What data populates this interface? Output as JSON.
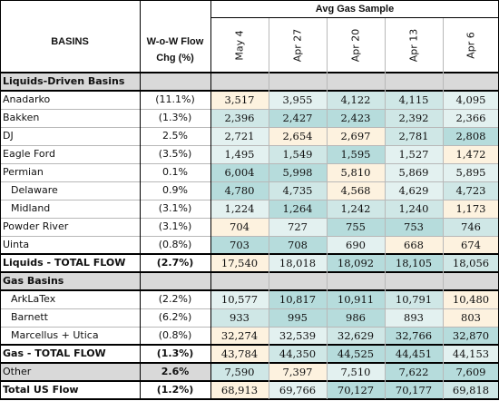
{
  "header": {
    "group_title": "Avg Gas Sample",
    "basins_label": "BASINS",
    "wow_label": "W-o-W Flow Chg (%)",
    "wow_label_line1": "W-o-W Flow",
    "wow_label_line2": "Chg (%)",
    "dates": [
      "May 4",
      "Apr 27",
      "Apr 20",
      "Apr 13",
      "Apr 6"
    ]
  },
  "colors": {
    "section_gray": "#d9d9d9",
    "cell_cream": "#fdf2df",
    "cell_light": "#e3f1f0",
    "cell_teal": "#b6dcdc",
    "cell_mid": "#cfe7e6"
  },
  "rows": [
    {
      "type": "section",
      "label": "Liquids-Driven Basins"
    },
    {
      "type": "data",
      "label": "Anadarko",
      "wow": "(11.1%)",
      "values": [
        "3,517",
        "3,955",
        "4,122",
        "4,115",
        "4,095"
      ],
      "shades": [
        "cream",
        "light",
        "mid",
        "mid",
        "light"
      ]
    },
    {
      "type": "data",
      "label": "Bakken",
      "wow": "(1.3%)",
      "values": [
        "2,396",
        "2,427",
        "2,423",
        "2,392",
        "2,366"
      ],
      "shades": [
        "mid",
        "teal",
        "teal",
        "mid",
        "light"
      ]
    },
    {
      "type": "data",
      "label": "DJ",
      "wow": "2.5%",
      "values": [
        "2,721",
        "2,654",
        "2,697",
        "2,781",
        "2,808"
      ],
      "shades": [
        "light",
        "cream",
        "cream",
        "mid",
        "teal"
      ]
    },
    {
      "type": "data",
      "label": "Eagle Ford",
      "wow": "(3.5%)",
      "values": [
        "1,495",
        "1,549",
        "1,595",
        "1,527",
        "1,472"
      ],
      "shades": [
        "light",
        "mid",
        "teal",
        "light",
        "cream"
      ]
    },
    {
      "type": "data",
      "label": "Permian",
      "wow": "0.1%",
      "values": [
        "6,004",
        "5,998",
        "5,810",
        "5,869",
        "5,895"
      ],
      "shades": [
        "teal",
        "teal",
        "cream",
        "light",
        "light"
      ]
    },
    {
      "type": "data",
      "label": "Delaware",
      "indent": true,
      "wow": "0.9%",
      "values": [
        "4,780",
        "4,735",
        "4,568",
        "4,629",
        "4,723"
      ],
      "shades": [
        "teal",
        "mid",
        "cream",
        "light",
        "mid"
      ]
    },
    {
      "type": "data",
      "label": "Midland",
      "indent": true,
      "wow": "(3.1%)",
      "values": [
        "1,224",
        "1,264",
        "1,242",
        "1,240",
        "1,173"
      ],
      "shades": [
        "light",
        "teal",
        "mid",
        "mid",
        "cream"
      ]
    },
    {
      "type": "data",
      "label": "Powder River",
      "wow": "(3.1%)",
      "values": [
        "704",
        "727",
        "755",
        "753",
        "746"
      ],
      "shades": [
        "cream",
        "light",
        "teal",
        "teal",
        "mid"
      ]
    },
    {
      "type": "data",
      "label": "Uinta",
      "wow": "(0.8%)",
      "values": [
        "703",
        "708",
        "690",
        "668",
        "674"
      ],
      "shades": [
        "teal",
        "teal",
        "light",
        "cream",
        "cream"
      ]
    },
    {
      "type": "total",
      "label": "Liquids - TOTAL FLOW",
      "wow": "(2.7%)",
      "values": [
        "17,540",
        "18,018",
        "18,092",
        "18,105",
        "18,056"
      ],
      "shades": [
        "cream",
        "light",
        "teal",
        "teal",
        "mid"
      ]
    },
    {
      "type": "section",
      "label": "Gas Basins"
    },
    {
      "type": "data",
      "label": "ArkLaTex",
      "indent": true,
      "wow": "(2.2%)",
      "values": [
        "10,577",
        "10,817",
        "10,911",
        "10,791",
        "10,480"
      ],
      "shades": [
        "light",
        "teal",
        "teal",
        "mid",
        "cream"
      ]
    },
    {
      "type": "data",
      "label": "Barnett",
      "indent": true,
      "wow": "(6.2%)",
      "values": [
        "933",
        "995",
        "986",
        "893",
        "803"
      ],
      "shades": [
        "mid",
        "teal",
        "teal",
        "light",
        "cream"
      ]
    },
    {
      "type": "data",
      "label": "Marcellus + Utica",
      "indent": true,
      "wow": "(0.8%)",
      "values": [
        "32,274",
        "32,539",
        "32,629",
        "32,766",
        "32,870"
      ],
      "shades": [
        "cream",
        "light",
        "mid",
        "teal",
        "teal"
      ]
    },
    {
      "type": "total",
      "label": "Gas - TOTAL FLOW",
      "wow": "(1.3%)",
      "values": [
        "43,784",
        "44,350",
        "44,525",
        "44,451",
        "44,153"
      ],
      "shades": [
        "cream",
        "mid",
        "teal",
        "teal",
        "light"
      ]
    },
    {
      "type": "total-other",
      "label": "Other",
      "wow": "2.6%",
      "values": [
        "7,590",
        "7,397",
        "7,510",
        "7,622",
        "7,609"
      ],
      "shades": [
        "mid",
        "cream",
        "light",
        "teal",
        "teal"
      ]
    },
    {
      "type": "total",
      "label": "Total US Flow",
      "wow": "(1.2%)",
      "values": [
        "68,913",
        "69,766",
        "70,127",
        "70,177",
        "69,818"
      ],
      "shades": [
        "cream",
        "light",
        "teal",
        "teal",
        "mid"
      ]
    }
  ]
}
